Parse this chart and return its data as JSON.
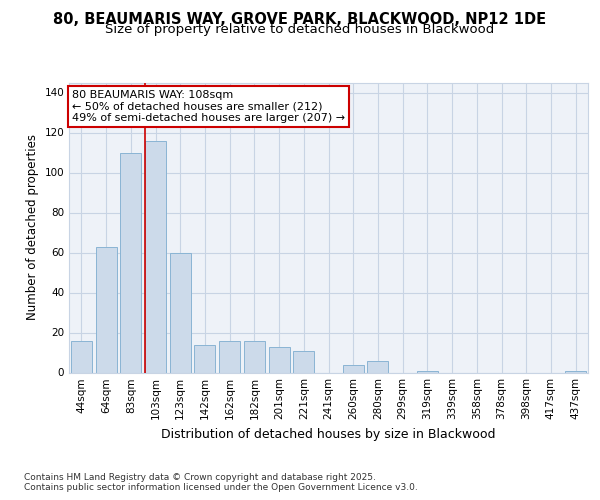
{
  "title_line1": "80, BEAUMARIS WAY, GROVE PARK, BLACKWOOD, NP12 1DE",
  "title_line2": "Size of property relative to detached houses in Blackwood",
  "xlabel": "Distribution of detached houses by size in Blackwood",
  "ylabel": "Number of detached properties",
  "categories": [
    "44sqm",
    "64sqm",
    "83sqm",
    "103sqm",
    "123sqm",
    "142sqm",
    "162sqm",
    "182sqm",
    "201sqm",
    "221sqm",
    "241sqm",
    "260sqm",
    "280sqm",
    "299sqm",
    "319sqm",
    "339sqm",
    "358sqm",
    "378sqm",
    "398sqm",
    "417sqm",
    "437sqm"
  ],
  "values": [
    16,
    63,
    110,
    116,
    60,
    14,
    16,
    16,
    13,
    11,
    0,
    4,
    6,
    0,
    1,
    0,
    0,
    0,
    0,
    0,
    1
  ],
  "bar_color": "#ccdaea",
  "bar_edge_color": "#8ab4d4",
  "vline_x_index": 3,
  "vline_color": "#cc0000",
  "annotation_line1": "80 BEAUMARIS WAY: 108sqm",
  "annotation_line2": "← 50% of detached houses are smaller (212)",
  "annotation_line3": "49% of semi-detached houses are larger (207) →",
  "annotation_box_color": "#cc0000",
  "ylim": [
    0,
    145
  ],
  "yticks": [
    0,
    20,
    40,
    60,
    80,
    100,
    120,
    140
  ],
  "grid_color": "#c8d4e4",
  "bg_color": "#eef2f8",
  "footer_text": "Contains HM Land Registry data © Crown copyright and database right 2025.\nContains public sector information licensed under the Open Government Licence v3.0.",
  "title_fontsize": 10.5,
  "subtitle_fontsize": 9.5,
  "xlabel_fontsize": 9,
  "ylabel_fontsize": 8.5,
  "tick_fontsize": 7.5,
  "annotation_fontsize": 8,
  "footer_fontsize": 6.5
}
